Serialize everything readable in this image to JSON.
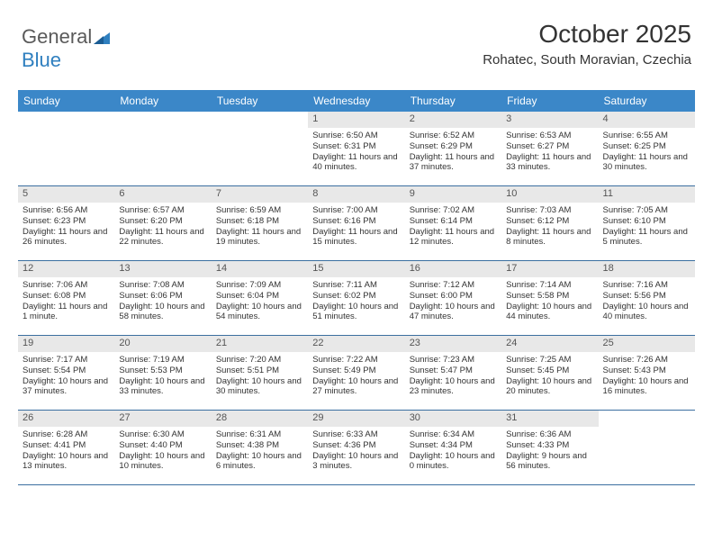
{
  "brand": {
    "part1": "General",
    "part2": "Blue"
  },
  "title": "October 2025",
  "subtitle": "Rohatec, South Moravian, Czechia",
  "colors": {
    "header_bg": "#3b87c8",
    "header_fg": "#ffffff",
    "num_bg": "#e8e8e8",
    "rule": "#3b6fa0",
    "text": "#333333"
  },
  "dayNames": [
    "Sunday",
    "Monday",
    "Tuesday",
    "Wednesday",
    "Thursday",
    "Friday",
    "Saturday"
  ],
  "weeks": [
    [
      {
        "n": "",
        "sr": "",
        "ss": "",
        "dl": ""
      },
      {
        "n": "",
        "sr": "",
        "ss": "",
        "dl": ""
      },
      {
        "n": "",
        "sr": "",
        "ss": "",
        "dl": ""
      },
      {
        "n": "1",
        "sr": "Sunrise: 6:50 AM",
        "ss": "Sunset: 6:31 PM",
        "dl": "Daylight: 11 hours and 40 minutes."
      },
      {
        "n": "2",
        "sr": "Sunrise: 6:52 AM",
        "ss": "Sunset: 6:29 PM",
        "dl": "Daylight: 11 hours and 37 minutes."
      },
      {
        "n": "3",
        "sr": "Sunrise: 6:53 AM",
        "ss": "Sunset: 6:27 PM",
        "dl": "Daylight: 11 hours and 33 minutes."
      },
      {
        "n": "4",
        "sr": "Sunrise: 6:55 AM",
        "ss": "Sunset: 6:25 PM",
        "dl": "Daylight: 11 hours and 30 minutes."
      }
    ],
    [
      {
        "n": "5",
        "sr": "Sunrise: 6:56 AM",
        "ss": "Sunset: 6:23 PM",
        "dl": "Daylight: 11 hours and 26 minutes."
      },
      {
        "n": "6",
        "sr": "Sunrise: 6:57 AM",
        "ss": "Sunset: 6:20 PM",
        "dl": "Daylight: 11 hours and 22 minutes."
      },
      {
        "n": "7",
        "sr": "Sunrise: 6:59 AM",
        "ss": "Sunset: 6:18 PM",
        "dl": "Daylight: 11 hours and 19 minutes."
      },
      {
        "n": "8",
        "sr": "Sunrise: 7:00 AM",
        "ss": "Sunset: 6:16 PM",
        "dl": "Daylight: 11 hours and 15 minutes."
      },
      {
        "n": "9",
        "sr": "Sunrise: 7:02 AM",
        "ss": "Sunset: 6:14 PM",
        "dl": "Daylight: 11 hours and 12 minutes."
      },
      {
        "n": "10",
        "sr": "Sunrise: 7:03 AM",
        "ss": "Sunset: 6:12 PM",
        "dl": "Daylight: 11 hours and 8 minutes."
      },
      {
        "n": "11",
        "sr": "Sunrise: 7:05 AM",
        "ss": "Sunset: 6:10 PM",
        "dl": "Daylight: 11 hours and 5 minutes."
      }
    ],
    [
      {
        "n": "12",
        "sr": "Sunrise: 7:06 AM",
        "ss": "Sunset: 6:08 PM",
        "dl": "Daylight: 11 hours and 1 minute."
      },
      {
        "n": "13",
        "sr": "Sunrise: 7:08 AM",
        "ss": "Sunset: 6:06 PM",
        "dl": "Daylight: 10 hours and 58 minutes."
      },
      {
        "n": "14",
        "sr": "Sunrise: 7:09 AM",
        "ss": "Sunset: 6:04 PM",
        "dl": "Daylight: 10 hours and 54 minutes."
      },
      {
        "n": "15",
        "sr": "Sunrise: 7:11 AM",
        "ss": "Sunset: 6:02 PM",
        "dl": "Daylight: 10 hours and 51 minutes."
      },
      {
        "n": "16",
        "sr": "Sunrise: 7:12 AM",
        "ss": "Sunset: 6:00 PM",
        "dl": "Daylight: 10 hours and 47 minutes."
      },
      {
        "n": "17",
        "sr": "Sunrise: 7:14 AM",
        "ss": "Sunset: 5:58 PM",
        "dl": "Daylight: 10 hours and 44 minutes."
      },
      {
        "n": "18",
        "sr": "Sunrise: 7:16 AM",
        "ss": "Sunset: 5:56 PM",
        "dl": "Daylight: 10 hours and 40 minutes."
      }
    ],
    [
      {
        "n": "19",
        "sr": "Sunrise: 7:17 AM",
        "ss": "Sunset: 5:54 PM",
        "dl": "Daylight: 10 hours and 37 minutes."
      },
      {
        "n": "20",
        "sr": "Sunrise: 7:19 AM",
        "ss": "Sunset: 5:53 PM",
        "dl": "Daylight: 10 hours and 33 minutes."
      },
      {
        "n": "21",
        "sr": "Sunrise: 7:20 AM",
        "ss": "Sunset: 5:51 PM",
        "dl": "Daylight: 10 hours and 30 minutes."
      },
      {
        "n": "22",
        "sr": "Sunrise: 7:22 AM",
        "ss": "Sunset: 5:49 PM",
        "dl": "Daylight: 10 hours and 27 minutes."
      },
      {
        "n": "23",
        "sr": "Sunrise: 7:23 AM",
        "ss": "Sunset: 5:47 PM",
        "dl": "Daylight: 10 hours and 23 minutes."
      },
      {
        "n": "24",
        "sr": "Sunrise: 7:25 AM",
        "ss": "Sunset: 5:45 PM",
        "dl": "Daylight: 10 hours and 20 minutes."
      },
      {
        "n": "25",
        "sr": "Sunrise: 7:26 AM",
        "ss": "Sunset: 5:43 PM",
        "dl": "Daylight: 10 hours and 16 minutes."
      }
    ],
    [
      {
        "n": "26",
        "sr": "Sunrise: 6:28 AM",
        "ss": "Sunset: 4:41 PM",
        "dl": "Daylight: 10 hours and 13 minutes."
      },
      {
        "n": "27",
        "sr": "Sunrise: 6:30 AM",
        "ss": "Sunset: 4:40 PM",
        "dl": "Daylight: 10 hours and 10 minutes."
      },
      {
        "n": "28",
        "sr": "Sunrise: 6:31 AM",
        "ss": "Sunset: 4:38 PM",
        "dl": "Daylight: 10 hours and 6 minutes."
      },
      {
        "n": "29",
        "sr": "Sunrise: 6:33 AM",
        "ss": "Sunset: 4:36 PM",
        "dl": "Daylight: 10 hours and 3 minutes."
      },
      {
        "n": "30",
        "sr": "Sunrise: 6:34 AM",
        "ss": "Sunset: 4:34 PM",
        "dl": "Daylight: 10 hours and 0 minutes."
      },
      {
        "n": "31",
        "sr": "Sunrise: 6:36 AM",
        "ss": "Sunset: 4:33 PM",
        "dl": "Daylight: 9 hours and 56 minutes."
      },
      {
        "n": "",
        "sr": "",
        "ss": "",
        "dl": ""
      }
    ]
  ]
}
